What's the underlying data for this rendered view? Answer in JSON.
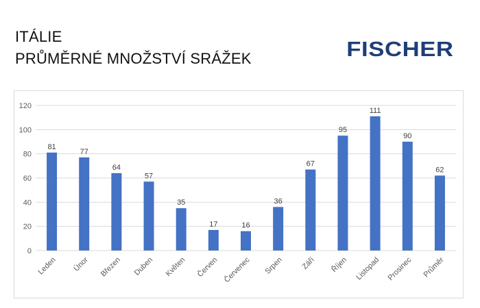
{
  "header": {
    "title_line1": "ITÁLIE",
    "title_line2": "PRŮMĚRNÉ MNOŽSTVÍ SRÁŽEK",
    "logo_text": "FISCHER"
  },
  "colors": {
    "bar": "#4472c4",
    "grid": "#d9d9d9",
    "logo": "#1f3e78"
  },
  "chart_data": {
    "type": "bar",
    "title": "",
    "xlabel": "",
    "ylabel": "",
    "categories": [
      "Leden",
      "Únor",
      "Březen",
      "Duben",
      "Květen",
      "Červen",
      "Červenec",
      "Srpen",
      "Září",
      "Říjen",
      "Listopad",
      "Prosinec",
      "Průměr"
    ],
    "values": [
      81,
      77,
      64,
      57,
      35,
      17,
      16,
      36,
      67,
      95,
      111,
      90,
      62
    ],
    "ylim": [
      0,
      120
    ],
    "yticks": [
      0,
      20,
      40,
      60,
      80,
      100,
      120
    ],
    "grid": true,
    "legend": "none",
    "data_labels": true
  }
}
